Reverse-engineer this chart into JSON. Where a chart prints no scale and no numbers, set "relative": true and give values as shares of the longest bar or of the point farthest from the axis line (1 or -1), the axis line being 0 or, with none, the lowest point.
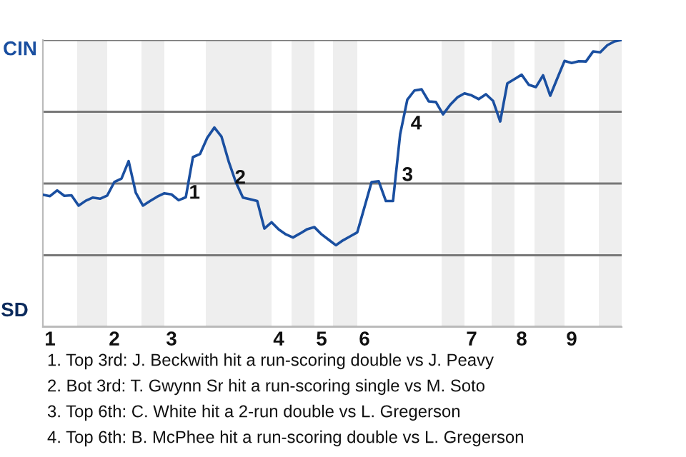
{
  "chart_data": {
    "type": "line",
    "relative": true,
    "categories": [
      null,
      "1",
      null,
      null,
      null,
      null,
      null,
      null,
      null,
      null,
      "2",
      null,
      null,
      null,
      null,
      null,
      null,
      null,
      "3",
      null,
      null,
      null,
      null,
      null,
      null,
      null,
      null,
      null,
      null,
      null,
      null,
      null,
      null,
      "4",
      null,
      null,
      null,
      null,
      null,
      "5",
      null,
      null,
      null,
      null,
      null,
      "6",
      null,
      null,
      null,
      null,
      null,
      null,
      null,
      null,
      null,
      null,
      null,
      null,
      null,
      null,
      "7",
      null,
      null,
      null,
      null,
      null,
      null,
      "8",
      null,
      null,
      null,
      null,
      null,
      null,
      "9",
      null,
      null,
      null,
      null,
      null,
      null,
      null
    ],
    "series": [
      {
        "color": "#1a4fa0",
        "values": [
          0.461,
          0.456,
          0.476,
          0.457,
          0.459,
          0.423,
          0.44,
          0.451,
          0.447,
          0.458,
          0.505,
          0.517,
          0.578,
          0.468,
          0.423,
          0.439,
          0.454,
          0.466,
          0.462,
          0.442,
          0.452,
          0.592,
          0.603,
          0.659,
          0.695,
          0.663,
          0.577,
          0.505,
          0.451,
          0.445,
          0.439,
          0.343,
          0.365,
          0.34,
          0.323,
          0.312,
          0.326,
          0.341,
          0.348,
          0.323,
          0.304,
          0.285,
          0.302,
          0.316,
          0.33,
          0.417,
          0.505,
          0.508,
          0.439,
          0.439,
          0.672,
          0.792,
          0.824,
          0.828,
          0.786,
          0.784,
          0.741,
          0.774,
          0.8,
          0.814,
          0.807,
          0.794,
          0.811,
          0.788,
          0.716,
          0.849,
          0.864,
          0.879,
          0.844,
          0.836,
          0.877,
          0.806,
          0.867,
          0.927,
          0.92,
          0.926,
          0.925,
          0.96,
          0.957,
          0.982,
          0.995,
          1.0
        ]
      }
    ],
    "grid": "y",
    "marker": "none",
    "line_style": "solid",
    "annotations": [
      "CIN",
      "SD",
      "1",
      "2",
      "3",
      "4",
      "1. Top 3rd: J. Beckwith hit a run-scoring double vs J. Peavy",
      "2. Bot 3rd: T. Gwynn Sr hit a run-scoring single vs M. Soto",
      "3. Top 6th: C. White hit a 2-run double vs L. Gregerson",
      "4. Top 6th: B. McPhee hit a run-scoring double vs L. Gregerson"
    ]
  }
}
